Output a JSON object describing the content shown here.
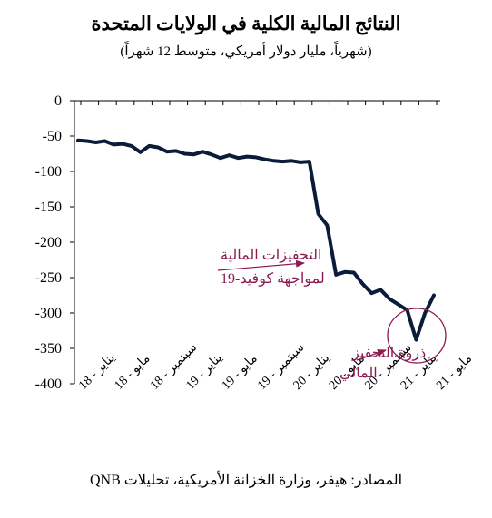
{
  "header": {
    "title": "النتائج المالية الكلية في الولايات المتحدة",
    "subtitle": "(شهرياً، مليار دولار أمريكي، متوسط 12 شهراً)"
  },
  "footer": {
    "source": "المصادر: هيفر، وزارة الخزانة الأمريكية، تحليلات QNB"
  },
  "chart_data": {
    "type": "line",
    "title": "النتائج المالية الكلية في الولايات المتحدة",
    "subtitle": "(شهرياً، مليار دولار أمريكي، متوسط 12 شهراً)",
    "ylim": [
      -400,
      0
    ],
    "yticks": [
      0,
      -50,
      -100,
      -150,
      -200,
      -250,
      -300,
      -350,
      -400
    ],
    "ytick_labels": [
      "0",
      "-50",
      "-100",
      "-150",
      "-200",
      "-250",
      "-300",
      "-350",
      "-400"
    ],
    "xtick_labels": [
      "يناير - 18",
      "مايو - 18",
      "سبتمبر - 18",
      "يناير - 19",
      "مايو - 19",
      "سبتمبر - 19",
      "يناير - 20",
      "مايو - 20",
      "سبتمبر - 20",
      "يناير - 21",
      "مايو - 21"
    ],
    "line_color": "#0B1B3A",
    "annotation_color": "#8B1A52",
    "series": [
      {
        "x": [
          "2018-01",
          "2018-02",
          "2018-03",
          "2018-04",
          "2018-05",
          "2018-06",
          "2018-07",
          "2018-08",
          "2018-09",
          "2018-10",
          "2018-11",
          "2018-12",
          "2019-01",
          "2019-02",
          "2019-03",
          "2019-04",
          "2019-05",
          "2019-06",
          "2019-07",
          "2019-08",
          "2019-09",
          "2019-10",
          "2019-11",
          "2019-12",
          "2020-01",
          "2020-02",
          "2020-03",
          "2020-04",
          "2020-05",
          "2020-06",
          "2020-07",
          "2020-08",
          "2020-09",
          "2020-10",
          "2020-11",
          "2020-12",
          "2021-01",
          "2021-02",
          "2021-03",
          "2021-04",
          "2021-05"
        ],
        "values": [
          -56,
          -57,
          -59,
          -57,
          -62,
          -61,
          -64,
          -73,
          -64,
          -66,
          -72,
          -71,
          -75,
          -76,
          -72,
          -76,
          -81,
          -77,
          -81,
          -79,
          -80,
          -83,
          -85,
          -86,
          -85,
          -87,
          -86,
          -160,
          -176,
          -246,
          -242,
          -243,
          -259,
          -272,
          -267,
          -280,
          -288,
          -296,
          -338,
          -300,
          -275
        ]
      }
    ],
    "annotations": [
      {
        "lines": [
          "التحفيزات المالية",
          "لمواجهة كوفيد-19"
        ],
        "target": {
          "x": "2020-03",
          "value": -225
        }
      },
      {
        "lines": [
          "ذروة التحفيز",
          "المالي"
        ],
        "target": {
          "x": "2021-03",
          "value": -338
        }
      }
    ]
  }
}
